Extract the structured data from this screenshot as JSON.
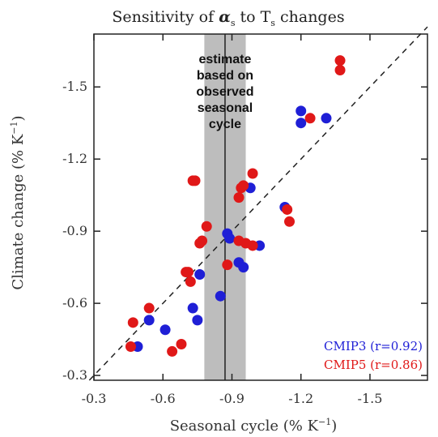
{
  "chart_data": {
    "type": "scatter",
    "title_prefix": "Sensitivity of ",
    "title_alpha": "α",
    "title_alpha_sub": "s",
    "title_mid": " to T",
    "title_t_sub": "s",
    "title_suffix": " changes",
    "xlabel_main": "Seasonal cycle (% K",
    "xlabel_exp": "−1",
    "xlabel_close": ")",
    "ylabel_main": "Climate change (% K",
    "ylabel_exp": "−1",
    "ylabel_close": ")",
    "xlim": [
      -0.3,
      -1.75
    ],
    "ylim": [
      -0.28,
      -1.72
    ],
    "xticks": [
      -0.3,
      -0.6,
      -0.9,
      -1.2,
      -1.5
    ],
    "yticks": [
      -0.3,
      -0.6,
      -0.9,
      -1.2,
      -1.5
    ],
    "xtick_labels": [
      "-0.3",
      "-0.6",
      "-0.9",
      "-1.2",
      "-1.5"
    ],
    "ytick_labels": [
      "-0.3",
      "-0.6",
      "-0.9",
      "-1.2",
      "-1.5"
    ],
    "observed_estimate": {
      "center": -0.87,
      "band": [
        -0.78,
        -0.96
      ]
    },
    "annotation_lines": [
      "estimate",
      "based on",
      "observed",
      "seasonal",
      "cycle"
    ],
    "one_to_one_line": true,
    "series": [
      {
        "name": "CMIP3",
        "r_label": "CMIP3 (r=0.92)",
        "color": "#1f1fd6",
        "points": [
          [
            -0.49,
            -0.42
          ],
          [
            -0.54,
            -0.53
          ],
          [
            -0.61,
            -0.49
          ],
          [
            -0.73,
            -0.58
          ],
          [
            -0.75,
            -0.53
          ],
          [
            -0.76,
            -0.72
          ],
          [
            -0.85,
            -0.63
          ],
          [
            -0.88,
            -0.89
          ],
          [
            -0.89,
            -0.87
          ],
          [
            -0.93,
            -0.77
          ],
          [
            -0.95,
            -0.75
          ],
          [
            -1.02,
            -0.84
          ],
          [
            -0.98,
            -1.08
          ],
          [
            -1.13,
            -1.0
          ],
          [
            -1.2,
            -1.4
          ],
          [
            -1.2,
            -1.35
          ],
          [
            -1.31,
            -1.37
          ]
        ]
      },
      {
        "name": "CMIP5",
        "r_label": "CMIP5 (r=0.86)",
        "color": "#e01818",
        "points": [
          [
            -0.46,
            -0.42
          ],
          [
            -0.47,
            -0.52
          ],
          [
            -0.54,
            -0.58
          ],
          [
            -0.64,
            -0.4
          ],
          [
            -0.68,
            -0.43
          ],
          [
            -0.7,
            -0.73
          ],
          [
            -0.71,
            -0.73
          ],
          [
            -0.72,
            -0.69
          ],
          [
            -0.76,
            -0.85
          ],
          [
            -0.77,
            -0.86
          ],
          [
            -0.79,
            -0.92
          ],
          [
            -0.73,
            -1.11
          ],
          [
            -0.74,
            -1.11
          ],
          [
            -0.88,
            -0.76
          ],
          [
            -0.93,
            -0.86
          ],
          [
            -0.96,
            -0.85
          ],
          [
            -0.99,
            -0.84
          ],
          [
            -0.93,
            -1.04
          ],
          [
            -0.94,
            -1.08
          ],
          [
            -0.95,
            -1.09
          ],
          [
            -0.99,
            -1.14
          ],
          [
            -1.14,
            -0.99
          ],
          [
            -1.15,
            -0.94
          ],
          [
            -1.24,
            -1.37
          ],
          [
            -1.37,
            -1.57
          ],
          [
            -1.37,
            -1.61
          ]
        ]
      }
    ]
  }
}
